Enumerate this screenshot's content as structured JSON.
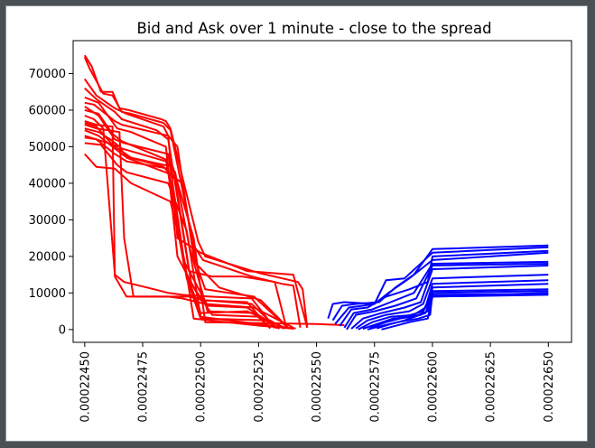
{
  "window": {
    "background": "#ffffff",
    "frame": "#4a5054"
  },
  "chart_data": {
    "type": "line",
    "title": "Bid and Ask over 1 minute - close to the spread",
    "xlabel": "",
    "ylabel": "",
    "xlim": [
      0.00022445,
      0.0002266
    ],
    "ylim": [
      -3500,
      79000
    ],
    "xticks": [
      0.0002245,
      0.00022475,
      0.000225,
      0.00022525,
      0.0002255,
      0.00022575,
      0.000226,
      0.00022625,
      0.0002265
    ],
    "xtick_labels": [
      "0.00022450",
      "0.00022475",
      "0.00022500",
      "0.00022525",
      "0.00022550",
      "0.00022575",
      "0.00022600",
      "0.00022625",
      "0.00022650"
    ],
    "yticks": [
      0,
      10000,
      20000,
      30000,
      40000,
      50000,
      60000,
      70000
    ],
    "ytick_labels": [
      "0",
      "10000",
      "20000",
      "30000",
      "40000",
      "50000",
      "60000",
      "70000"
    ],
    "grid": false,
    "legend": "none",
    "colors": {
      "bid": "#ff0000",
      "ask": "#0000ff"
    },
    "bid_series": [
      {
        "x": [
          0.0002245,
          0.00022453,
          0.00022457,
          0.00022462,
          0.00022465,
          0.00022469,
          0.00022483,
          0.00022485,
          0.00022487,
          0.00022499,
          0.00022502,
          0.00022525,
          0.00022542,
          0.00022544,
          0.00022546
        ],
        "y": [
          75000,
          72000,
          65000,
          65000,
          60500,
          60000,
          57500,
          57000,
          55000,
          24000,
          20000,
          15500,
          13000,
          11000,
          500
        ]
      },
      {
        "x": [
          0.0002245,
          0.00022452,
          0.00022458,
          0.00022462,
          0.00022466,
          0.0002247,
          0.00022484,
          0.00022487,
          0.00022497,
          0.00022501,
          0.00022522,
          0.00022535,
          0.0002254,
          0.00022543
        ],
        "y": [
          74500,
          71500,
          64500,
          64000,
          59500,
          59000,
          56500,
          54500,
          23000,
          19000,
          14500,
          12500,
          12000,
          500
        ]
      },
      {
        "x": [
          0.0002245,
          0.00022455,
          0.00022463,
          0.00022468,
          0.00022484,
          0.00022486,
          0.0002249,
          0.000225,
          0.0002252,
          0.0002254,
          0.00022546
        ],
        "y": [
          68500,
          64000,
          60500,
          59000,
          55500,
          53000,
          25000,
          21000,
          16000,
          15000,
          500
        ]
      },
      {
        "x": [
          0.0002245,
          0.00022455,
          0.00022463,
          0.00022466,
          0.00022481,
          0.00022486,
          0.00022495,
          0.00022505,
          0.00022518,
          0.00022532,
          0.00022537
        ],
        "y": [
          66000,
          63000,
          59500,
          57500,
          54500,
          52000,
          16000,
          14500,
          14500,
          13000,
          500
        ]
      },
      {
        "x": [
          0.0002245,
          0.00022456,
          0.00022464,
          0.0002247,
          0.00022485,
          0.0002249,
          0.000225,
          0.0002252,
          0.0002253
        ],
        "y": [
          63500,
          62000,
          55000,
          54000,
          50000,
          20000,
          8000,
          7500,
          300
        ]
      },
      {
        "x": [
          0.0002245,
          0.00022456,
          0.00022463,
          0.00022467,
          0.00022486,
          0.00022493,
          0.00022503,
          0.0002252,
          0.00022534
        ],
        "y": [
          61000,
          58500,
          52000,
          51000,
          48000,
          18500,
          6500,
          6000,
          200
        ]
      },
      {
        "x": [
          0.0002245,
          0.00022454,
          0.00022458,
          0.00022463,
          0.00022467,
          0.0002248,
          0.00022486,
          0.00022492,
          0.00022504,
          0.00022522,
          0.00022532
        ],
        "y": [
          58500,
          57500,
          55000,
          15000,
          13000,
          11000,
          10000,
          9500,
          9000,
          8500,
          400
        ]
      },
      {
        "x": [
          0.0002245,
          0.00022455,
          0.00022462,
          0.00022463,
          0.00022468,
          0.00022486,
          0.00022495,
          0.00022502,
          0.00022522,
          0.00022532
        ],
        "y": [
          57000,
          56000,
          55500,
          14500,
          9000,
          9000,
          9000,
          8000,
          7000,
          1000
        ]
      },
      {
        "x": [
          0.0002245,
          0.00022455,
          0.00022465,
          0.00022467,
          0.00022471,
          0.0002248,
          0.00022486,
          0.00022492,
          0.00022502,
          0.00022523,
          0.0002254
        ],
        "y": [
          56000,
          55000,
          54000,
          25000,
          9000,
          9000,
          9000,
          8500,
          7000,
          6000,
          500
        ]
      },
      {
        "x": [
          0.0002245,
          0.00022456,
          0.00022461,
          0.00022466,
          0.00022485,
          0.00022489,
          0.00022495,
          0.00022503,
          0.00022523,
          0.0002253
        ],
        "y": [
          55000,
          54000,
          52000,
          49500,
          46000,
          43000,
          23000,
          5000,
          4500,
          500
        ]
      },
      {
        "x": [
          0.0002245,
          0.00022456,
          0.00022462,
          0.00022467,
          0.00022484,
          0.00022489,
          0.00022496,
          0.00022505,
          0.00022526,
          0.00022533
        ],
        "y": [
          54500,
          53000,
          50000,
          47500,
          44500,
          41000,
          12500,
          4000,
          3500,
          300
        ]
      },
      {
        "x": [
          0.0002245,
          0.00022455,
          0.00022463,
          0.00022468,
          0.00022486,
          0.00022494,
          0.000225,
          0.0002253,
          0.00022536
        ],
        "y": [
          53000,
          52000,
          48000,
          46000,
          44000,
          14000,
          3000,
          2500,
          200
        ]
      },
      {
        "x": [
          0.0002245,
          0.00022457,
          0.00022464,
          0.00022468,
          0.00022486,
          0.00022494,
          0.000225,
          0.00022525,
          0.0002254
        ],
        "y": [
          51000,
          50500,
          45000,
          43000,
          40000,
          27000,
          3500,
          1500,
          200
        ]
      },
      {
        "x": [
          0.0002245,
          0.00022455,
          0.00022463,
          0.0002247,
          0.00022487,
          0.00022493,
          0.00022497,
          0.00022526,
          0.00022541
        ],
        "y": [
          48000,
          44500,
          44000,
          40000,
          35000,
          19000,
          3000,
          1000,
          300
        ]
      },
      {
        "x": [
          0.0002245,
          0.00022455,
          0.00022462,
          0.0002247,
          0.00022488,
          0.00022497,
          0.00022502,
          0.0002255,
          0.00022562
        ],
        "y": [
          56500,
          55500,
          50500,
          47000,
          44500,
          25000,
          2000,
          1500,
          1200
        ]
      },
      {
        "x": [
          0.0002245,
          0.00022456,
          0.00022462,
          0.00022466,
          0.00022485,
          0.00022493,
          0.000225,
          0.0002252,
          0.00022537
        ],
        "y": [
          60000,
          59000,
          53500,
          51500,
          46500,
          17000,
          4500,
          5000,
          300
        ]
      },
      {
        "x": [
          0.0002245,
          0.00022454,
          0.00022463,
          0.00022466,
          0.00022486,
          0.0002249,
          0.00022497,
          0.00022502,
          0.00022523,
          0.00022538
        ],
        "y": [
          62000,
          61500,
          57000,
          56000,
          53000,
          50000,
          20000,
          11000,
          9000,
          200
        ]
      },
      {
        "x": [
          0.0002245,
          0.00022455,
          0.00022465,
          0.00022468,
          0.00022487,
          0.00022492,
          0.00022498,
          0.00022508,
          0.00022526,
          0.00022538
        ],
        "y": [
          52500,
          52000,
          50000,
          47000,
          42500,
          40000,
          18000,
          11500,
          8000,
          300
        ]
      }
    ],
    "ask_series": [
      {
        "x": [
          0.00022555,
          0.00022557,
          0.00022562,
          0.00022575,
          0.0002258,
          0.00022588,
          0.000226,
          0.0002265
        ],
        "y": [
          3000,
          7000,
          7500,
          7000,
          13500,
          14000,
          21000,
          22500
        ]
      },
      {
        "x": [
          0.00022557,
          0.00022561,
          0.00022567,
          0.00022577,
          0.00022584,
          0.00022592,
          0.000226,
          0.0002265
        ],
        "y": [
          2500,
          6500,
          7000,
          7500,
          11500,
          15000,
          22000,
          23000
        ]
      },
      {
        "x": [
          0.00022558,
          0.00022564,
          0.0002257,
          0.00022575,
          0.00022581,
          0.0002259,
          0.000226,
          0.0002265
        ],
        "y": [
          1500,
          6000,
          6500,
          7000,
          10000,
          14000,
          19000,
          21000
        ]
      },
      {
        "x": [
          0.0002256,
          0.00022565,
          0.00022572,
          0.0002258,
          0.0002259,
          0.00022598,
          0.000226,
          0.0002265
        ],
        "y": [
          1000,
          5500,
          6000,
          9000,
          11000,
          13000,
          20000,
          21500
        ]
      },
      {
        "x": [
          0.00022562,
          0.00022566,
          0.00022574,
          0.00022582,
          0.00022592,
          0.000226,
          0.0002265
        ],
        "y": [
          500,
          4500,
          5500,
          7500,
          10000,
          18000,
          18500
        ]
      },
      {
        "x": [
          0.00022563,
          0.00022567,
          0.00022575,
          0.00022584,
          0.00022593,
          0.000226,
          0.0002265
        ],
        "y": [
          0,
          4000,
          5000,
          6500,
          8500,
          17500,
          18000
        ]
      },
      {
        "x": [
          0.00022565,
          0.0002257,
          0.00022578,
          0.00022588,
          0.00022595,
          0.000226,
          0.0002265
        ],
        "y": [
          200,
          3000,
          4500,
          6000,
          7500,
          16500,
          17500
        ]
      },
      {
        "x": [
          0.00022567,
          0.00022572,
          0.0002258,
          0.0002259,
          0.00022596,
          0.000226,
          0.0002265
        ],
        "y": [
          300,
          2500,
          4000,
          5000,
          7000,
          14000,
          15000
        ]
      },
      {
        "x": [
          0.00022568,
          0.00022574,
          0.00022582,
          0.00022592,
          0.00022597,
          0.000226,
          0.0002265
        ],
        "y": [
          0,
          2000,
          3500,
          4000,
          6000,
          12500,
          13500
        ]
      },
      {
        "x": [
          0.0002257,
          0.00022576,
          0.00022583,
          0.00022592,
          0.00022598,
          0.000226,
          0.0002265
        ],
        "y": [
          200,
          1500,
          3000,
          3500,
          5000,
          11500,
          12500
        ]
      },
      {
        "x": [
          0.00022572,
          0.00022578,
          0.00022585,
          0.00022594,
          0.00022599,
          0.000226,
          0.0002265
        ],
        "y": [
          0,
          1000,
          2000,
          3000,
          4000,
          10000,
          10500
        ]
      },
      {
        "x": [
          0.00022573,
          0.0002258,
          0.00022586,
          0.00022595,
          0.000226,
          0.0002265
        ],
        "y": [
          500,
          2000,
          3000,
          4000,
          9000,
          10000
        ]
      },
      {
        "x": [
          0.00022575,
          0.00022581,
          0.00022588,
          0.00022596,
          0.000226,
          0.0002265
        ],
        "y": [
          800,
          2500,
          3500,
          5000,
          10500,
          11000
        ]
      },
      {
        "x": [
          0.00022576,
          0.00022582,
          0.00022588,
          0.00022597,
          0.000226,
          0.0002265
        ],
        "y": [
          300,
          1500,
          2500,
          4500,
          9500,
          9800
        ]
      },
      {
        "x": [
          0.00022578,
          0.00022584,
          0.0002259,
          0.00022598,
          0.000226,
          0.0002265
        ],
        "y": [
          0,
          1000,
          2000,
          3000,
          9000,
          9500
        ]
      }
    ]
  }
}
